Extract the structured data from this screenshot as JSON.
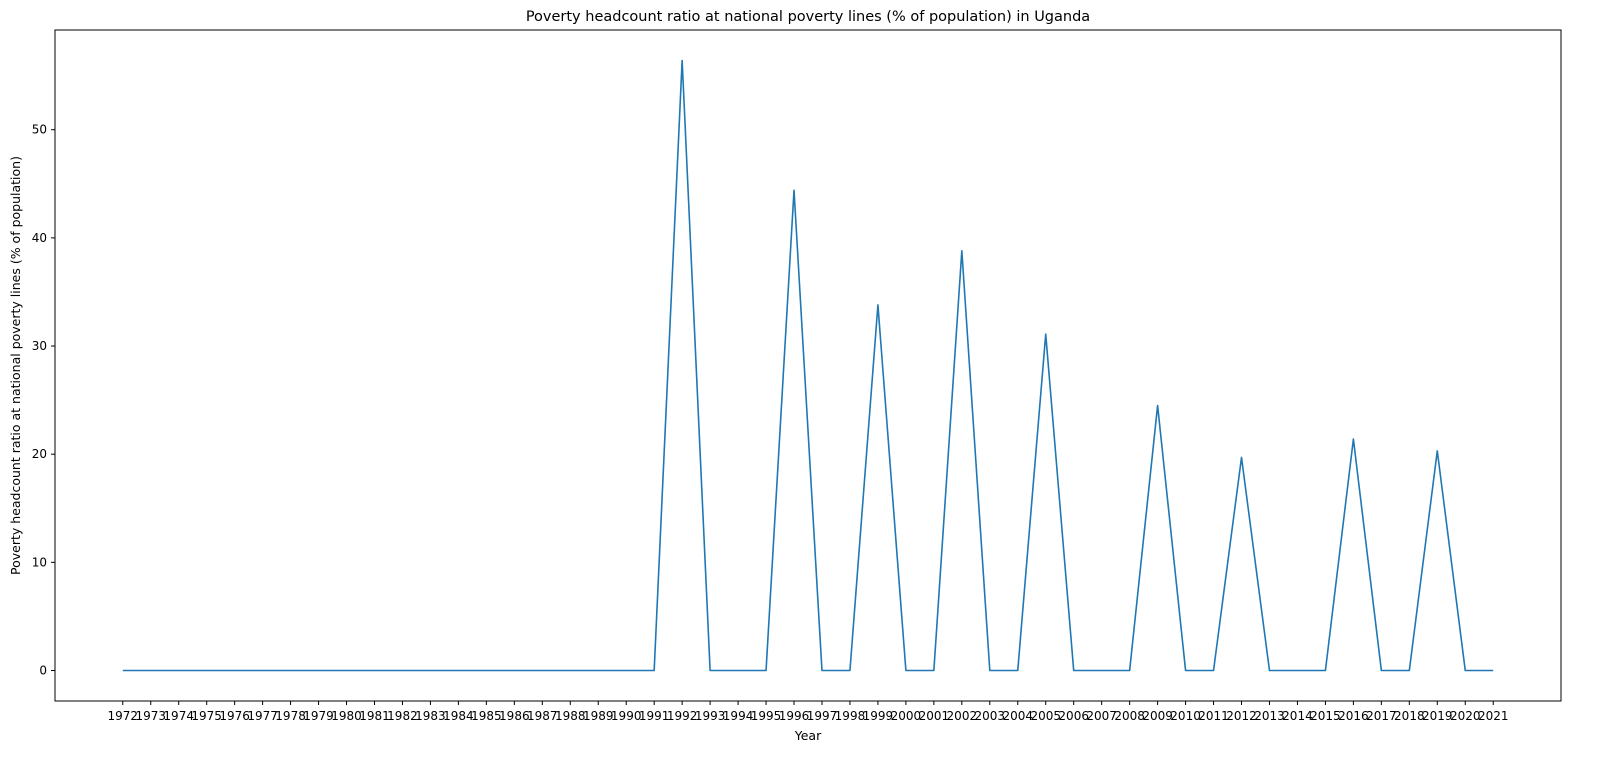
{
  "chart_data": {
    "type": "line",
    "title": "Poverty headcount ratio at national poverty lines (% of population) in Uganda",
    "xlabel": "Year",
    "ylabel": "Poverty headcount ratio at national poverty lines (% of population)",
    "x": [
      "1972",
      "1973",
      "1974",
      "1975",
      "1976",
      "1977",
      "1978",
      "1979",
      "1980",
      "1981",
      "1982",
      "1983",
      "1984",
      "1985",
      "1986",
      "1987",
      "1988",
      "1989",
      "1990",
      "1991",
      "1992",
      "1993",
      "1994",
      "1995",
      "1996",
      "1997",
      "1998",
      "1999",
      "2000",
      "2001",
      "2002",
      "2003",
      "2004",
      "2005",
      "2006",
      "2007",
      "2008",
      "2009",
      "2010",
      "2011",
      "2012",
      "2013",
      "2014",
      "2015",
      "2016",
      "2017",
      "2018",
      "2019",
      "2020",
      "2021"
    ],
    "series": [
      {
        "values": [
          0,
          0,
          0,
          0,
          0,
          0,
          0,
          0,
          0,
          0,
          0,
          0,
          0,
          0,
          0,
          0,
          0,
          0,
          0,
          0,
          56.4,
          0,
          0,
          0,
          44.4,
          0,
          0,
          33.8,
          0,
          0,
          38.8,
          0,
          0,
          31.1,
          0,
          0,
          0,
          24.5,
          0,
          0,
          19.7,
          0,
          0,
          0,
          21.4,
          0,
          0,
          20.3,
          0,
          0
        ],
        "color": "#1f77b4"
      }
    ],
    "yticks": [
      0,
      10,
      20,
      30,
      40,
      50
    ],
    "ylim": [
      -2.82,
      59.22
    ],
    "grid": false,
    "legend": "none"
  }
}
